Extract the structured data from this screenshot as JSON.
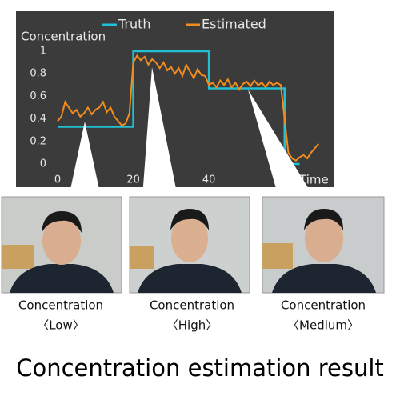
{
  "chart_data": {
    "type": "line",
    "y_label": "Concentration",
    "x_label": "Time",
    "xlim": [
      0,
      70
    ],
    "ylim": [
      0,
      1
    ],
    "xticks": [
      0,
      20,
      40
    ],
    "yticks": [
      0,
      0.2,
      0.4,
      0.6,
      0.8,
      1
    ],
    "grid": false,
    "legend": "top",
    "series": [
      {
        "name": "Truth",
        "color": "#1fc1d3",
        "step": true,
        "x": [
          0,
          20,
          20,
          40,
          40,
          60,
          60,
          64
        ],
        "values": [
          0.33,
          0.33,
          1,
          1,
          0.67,
          0.67,
          0,
          0
        ]
      },
      {
        "name": "Estimated",
        "color": "#f28c1c",
        "x": [
          0,
          1,
          2,
          3,
          4,
          5,
          6,
          7,
          8,
          9,
          10,
          11,
          12,
          13,
          14,
          15,
          16,
          17,
          18,
          19,
          20,
          21,
          22,
          23,
          24,
          25,
          26,
          27,
          28,
          29,
          30,
          31,
          32,
          33,
          34,
          35,
          36,
          37,
          38,
          39,
          40,
          41,
          42,
          43,
          44,
          45,
          46,
          47,
          48,
          49,
          50,
          51,
          52,
          53,
          54,
          55,
          56,
          57,
          58,
          59,
          60,
          61,
          62,
          63,
          64,
          65,
          66,
          67,
          68,
          69
        ],
        "values": [
          0.38,
          0.42,
          0.55,
          0.5,
          0.45,
          0.48,
          0.42,
          0.45,
          0.5,
          0.44,
          0.48,
          0.5,
          0.55,
          0.46,
          0.5,
          0.42,
          0.38,
          0.34,
          0.36,
          0.45,
          0.9,
          0.96,
          0.92,
          0.95,
          0.88,
          0.93,
          0.9,
          0.85,
          0.9,
          0.83,
          0.86,
          0.8,
          0.85,
          0.78,
          0.88,
          0.82,
          0.76,
          0.84,
          0.79,
          0.78,
          0.7,
          0.72,
          0.68,
          0.74,
          0.7,
          0.75,
          0.68,
          0.72,
          0.66,
          0.71,
          0.73,
          0.69,
          0.74,
          0.7,
          0.72,
          0.68,
          0.73,
          0.7,
          0.72,
          0.7,
          0.4,
          0.1,
          0.05,
          0.03,
          0.06,
          0.08,
          0.05,
          0.1,
          0.14,
          0.18
        ]
      }
    ]
  },
  "panels": [
    {
      "line1": "Concentration",
      "line2": "〈Low〉"
    },
    {
      "line1": "Concentration",
      "line2": "〈High〉"
    },
    {
      "line1": "Concentration",
      "line2": "〈Medium〉"
    }
  ],
  "caption": "Concentration estimation result"
}
